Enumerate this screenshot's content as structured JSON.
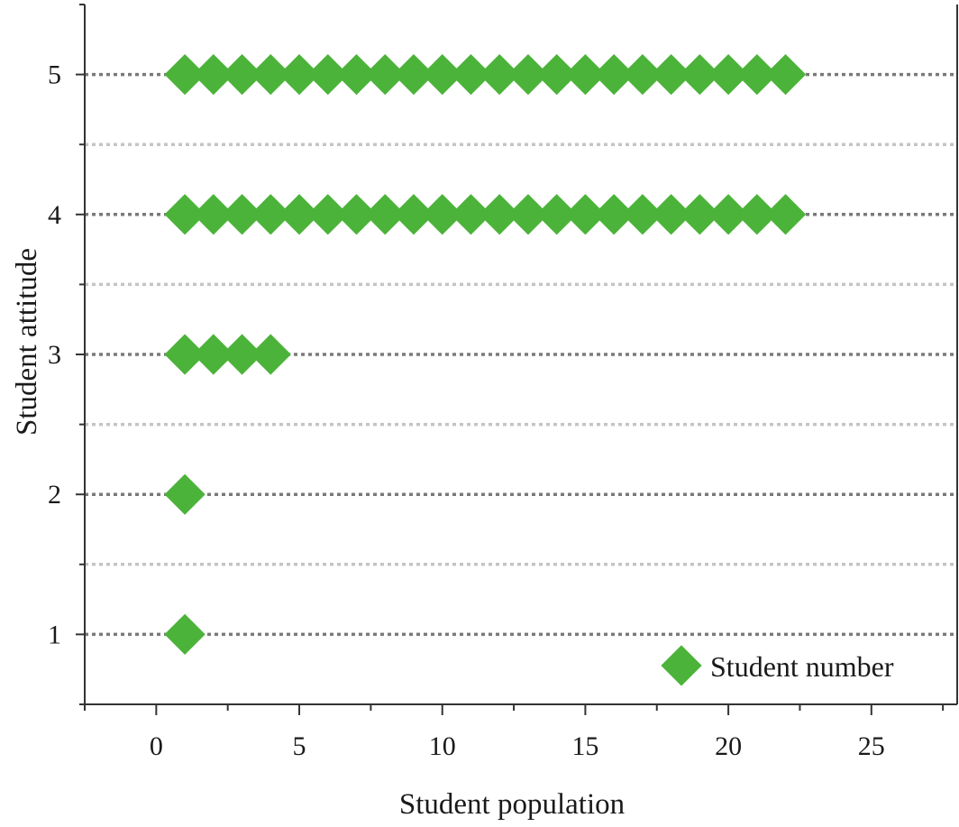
{
  "chart_data": {
    "type": "scatter",
    "title": "",
    "xlabel": "Student population",
    "ylabel": "Student attitude",
    "xlim": [
      -2.5,
      28
    ],
    "ylim": [
      0.5,
      5.5
    ],
    "xticks": [
      0,
      5,
      10,
      15,
      20,
      25
    ],
    "yticks": [
      1,
      2,
      3,
      4,
      5
    ],
    "grid": "horizontal dotted at major and minor y ticks",
    "legend_position": "bottom-right",
    "series": [
      {
        "name": "Student number",
        "marker": "diamond",
        "color": "#4cb33a",
        "points": [
          {
            "attitude": 1,
            "x": [
              1
            ]
          },
          {
            "attitude": 2,
            "x": [
              1
            ]
          },
          {
            "attitude": 3,
            "x": [
              1,
              2,
              3,
              4
            ]
          },
          {
            "attitude": 4,
            "x": [
              1,
              2,
              3,
              4,
              5,
              6,
              7,
              8,
              9,
              10,
              11,
              12,
              13,
              14,
              15,
              16,
              17,
              18,
              19,
              20,
              21,
              22
            ]
          },
          {
            "attitude": 5,
            "x": [
              1,
              2,
              3,
              4,
              5,
              6,
              7,
              8,
              9,
              10,
              11,
              12,
              13,
              14,
              15,
              16,
              17,
              18,
              19,
              20,
              21,
              22
            ]
          }
        ]
      }
    ]
  },
  "colors": {
    "marker": "#4cb33a",
    "major_grid": "#7a7a7a",
    "minor_grid": "#c4c4c4",
    "axis": "#333333"
  }
}
